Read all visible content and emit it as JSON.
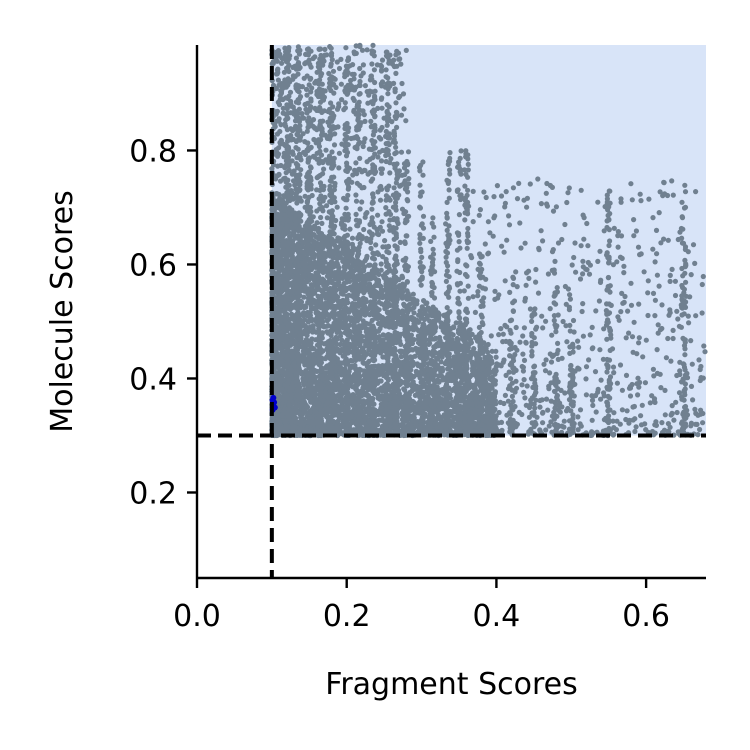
{
  "chart_data": {
    "type": "scatter",
    "title": "",
    "xlabel": "Fragment Scores",
    "ylabel": "Molecule Scores",
    "xlim": [
      0.0,
      0.68
    ],
    "ylim": [
      0.05,
      0.985
    ],
    "x_ticks": [
      0.0,
      0.2,
      0.4,
      0.6
    ],
    "x_tick_labels": [
      "0.0",
      "0.2",
      "0.4",
      "0.6"
    ],
    "y_ticks": [
      0.2,
      0.4,
      0.6,
      0.8
    ],
    "y_tick_labels": [
      "0.2",
      "0.4",
      "0.6",
      "0.8"
    ],
    "grid": false,
    "thresholds": {
      "fragment": 0.1,
      "molecule": 0.3
    },
    "highlight_region": {
      "x": [
        0.1,
        0.68
      ],
      "y": [
        0.3,
        0.985
      ],
      "color": "#d8e4f8"
    },
    "threshold_line_color": "#000000",
    "point_color": "#708090",
    "highlight_point_color": "#0000cc",
    "highlight_points": [
      {
        "x": 0.101,
        "y": 0.345
      },
      {
        "x": 0.102,
        "y": 0.352
      },
      {
        "x": 0.103,
        "y": 0.358
      },
      {
        "x": 0.101,
        "y": 0.362
      },
      {
        "x": 0.104,
        "y": 0.349
      },
      {
        "x": 0.102,
        "y": 0.366
      }
    ],
    "vertical_streaks": [
      {
        "x": 0.12,
        "y": [
          0.3,
          0.985
        ]
      },
      {
        "x": 0.135,
        "y": [
          0.3,
          0.985
        ]
      },
      {
        "x": 0.15,
        "y": [
          0.3,
          0.985
        ]
      },
      {
        "x": 0.165,
        "y": [
          0.3,
          0.985
        ]
      },
      {
        "x": 0.18,
        "y": [
          0.3,
          0.985
        ]
      },
      {
        "x": 0.2,
        "y": [
          0.3,
          0.985
        ]
      },
      {
        "x": 0.215,
        "y": [
          0.3,
          0.985
        ]
      },
      {
        "x": 0.235,
        "y": [
          0.3,
          0.985
        ]
      },
      {
        "x": 0.255,
        "y": [
          0.3,
          0.985
        ]
      },
      {
        "x": 0.265,
        "y": [
          0.3,
          0.985
        ]
      },
      {
        "x": 0.28,
        "y": [
          0.3,
          0.8
        ]
      },
      {
        "x": 0.3,
        "y": [
          0.3,
          0.78
        ]
      },
      {
        "x": 0.315,
        "y": [
          0.3,
          0.7
        ]
      },
      {
        "x": 0.335,
        "y": [
          0.3,
          0.8
        ]
      },
      {
        "x": 0.35,
        "y": [
          0.3,
          0.8
        ]
      },
      {
        "x": 0.36,
        "y": [
          0.3,
          0.8
        ]
      },
      {
        "x": 0.38,
        "y": [
          0.3,
          0.62
        ]
      },
      {
        "x": 0.42,
        "y": [
          0.3,
          0.58
        ]
      },
      {
        "x": 0.45,
        "y": [
          0.3,
          0.52
        ]
      },
      {
        "x": 0.48,
        "y": [
          0.3,
          0.56
        ]
      },
      {
        "x": 0.5,
        "y": [
          0.3,
          0.55
        ]
      },
      {
        "x": 0.55,
        "y": [
          0.3,
          0.74
        ]
      },
      {
        "x": 0.65,
        "y": [
          0.3,
          0.72
        ]
      }
    ]
  }
}
